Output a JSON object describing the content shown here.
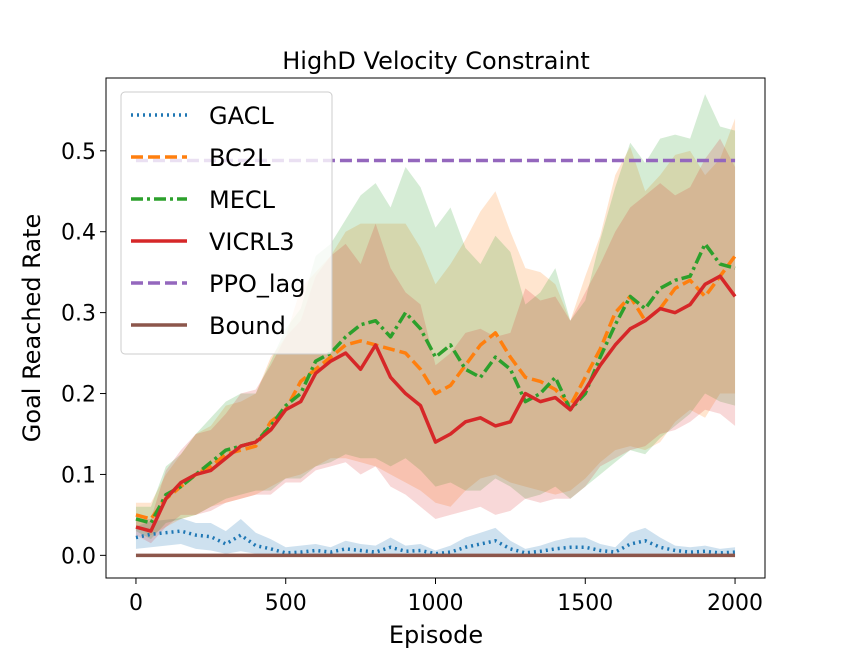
{
  "chart_data": {
    "type": "line",
    "title": "HighD Velocity Constraint",
    "xlabel": "Episode",
    "ylabel": "Goal Reached Rate",
    "xlim": [
      -100,
      2100
    ],
    "ylim": [
      -0.028,
      0.59
    ],
    "xticks": [
      0,
      500,
      1000,
      1500,
      2000
    ],
    "yticks": [
      0.0,
      0.1,
      0.2,
      0.3,
      0.4,
      0.5
    ],
    "xtick_labels": [
      "0",
      "500",
      "1000",
      "1500",
      "2000"
    ],
    "ytick_labels": [
      "0.0",
      "0.1",
      "0.2",
      "0.3",
      "0.4",
      "0.5"
    ],
    "legend_position": "top-left",
    "series": [
      {
        "name": "GACL",
        "color": "#1f77b4",
        "dash": "dotted",
        "band_opacity": 0.22,
        "x": [
          0,
          50,
          100,
          150,
          200,
          250,
          300,
          350,
          400,
          450,
          500,
          550,
          600,
          650,
          700,
          750,
          800,
          850,
          900,
          950,
          1000,
          1050,
          1100,
          1150,
          1200,
          1250,
          1300,
          1350,
          1400,
          1450,
          1500,
          1550,
          1600,
          1650,
          1700,
          1750,
          1800,
          1850,
          1900,
          1950,
          2000
        ],
        "values": [
          0.022,
          0.026,
          0.028,
          0.03,
          0.025,
          0.023,
          0.014,
          0.025,
          0.012,
          0.008,
          0.003,
          0.004,
          0.006,
          0.004,
          0.008,
          0.006,
          0.004,
          0.01,
          0.005,
          0.006,
          0.002,
          0.004,
          0.01,
          0.014,
          0.018,
          0.008,
          0.003,
          0.005,
          0.008,
          0.01,
          0.01,
          0.006,
          0.004,
          0.014,
          0.018,
          0.01,
          0.006,
          0.004,
          0.005,
          0.003,
          0.004
        ],
        "lower": [
          0.008,
          0.01,
          0.012,
          0.014,
          0.008,
          0.006,
          0.002,
          0.005,
          0.002,
          0.0,
          0.0,
          0.0,
          0.0,
          0.0,
          0.0,
          0.0,
          0.0,
          0.0,
          0.0,
          0.0,
          0.0,
          0.0,
          0.0,
          0.0,
          0.002,
          0.0,
          0.0,
          0.0,
          0.0,
          0.0,
          0.0,
          0.0,
          0.0,
          0.0,
          0.002,
          0.0,
          0.0,
          0.0,
          0.0,
          0.0,
          0.0
        ],
        "upper": [
          0.036,
          0.042,
          0.044,
          0.046,
          0.04,
          0.04,
          0.03,
          0.045,
          0.028,
          0.02,
          0.01,
          0.012,
          0.014,
          0.01,
          0.018,
          0.014,
          0.012,
          0.022,
          0.012,
          0.014,
          0.006,
          0.012,
          0.022,
          0.028,
          0.034,
          0.018,
          0.008,
          0.012,
          0.018,
          0.022,
          0.022,
          0.014,
          0.01,
          0.028,
          0.034,
          0.022,
          0.012,
          0.01,
          0.012,
          0.008,
          0.01
        ]
      },
      {
        "name": "BC2L",
        "color": "#ff7f0e",
        "dash": "dashed",
        "band_opacity": 0.2,
        "x": [
          0,
          50,
          100,
          150,
          200,
          250,
          300,
          350,
          400,
          450,
          500,
          550,
          600,
          650,
          700,
          750,
          800,
          850,
          900,
          950,
          1000,
          1050,
          1100,
          1150,
          1200,
          1250,
          1300,
          1350,
          1400,
          1450,
          1500,
          1550,
          1600,
          1650,
          1700,
          1750,
          1800,
          1850,
          1900,
          1950,
          2000
        ],
        "values": [
          0.05,
          0.045,
          0.07,
          0.085,
          0.1,
          0.11,
          0.125,
          0.13,
          0.135,
          0.165,
          0.18,
          0.215,
          0.23,
          0.245,
          0.26,
          0.265,
          0.26,
          0.255,
          0.25,
          0.23,
          0.2,
          0.21,
          0.235,
          0.26,
          0.275,
          0.245,
          0.22,
          0.215,
          0.205,
          0.185,
          0.22,
          0.255,
          0.3,
          0.32,
          0.29,
          0.305,
          0.33,
          0.34,
          0.32,
          0.345,
          0.37
        ],
        "lower": [
          0.035,
          0.025,
          0.035,
          0.045,
          0.05,
          0.06,
          0.065,
          0.07,
          0.075,
          0.085,
          0.095,
          0.1,
          0.11,
          0.12,
          0.12,
          0.115,
          0.11,
          0.1,
          0.09,
          0.08,
          0.065,
          0.06,
          0.08,
          0.095,
          0.1,
          0.09,
          0.085,
          0.08,
          0.075,
          0.08,
          0.095,
          0.115,
          0.13,
          0.135,
          0.13,
          0.14,
          0.165,
          0.18,
          0.17,
          0.2,
          0.2
        ],
        "upper": [
          0.065,
          0.065,
          0.1,
          0.125,
          0.15,
          0.16,
          0.185,
          0.19,
          0.2,
          0.245,
          0.27,
          0.33,
          0.35,
          0.37,
          0.4,
          0.41,
          0.41,
          0.41,
          0.41,
          0.38,
          0.335,
          0.36,
          0.39,
          0.425,
          0.45,
          0.4,
          0.355,
          0.35,
          0.335,
          0.29,
          0.345,
          0.395,
          0.47,
          0.505,
          0.45,
          0.47,
          0.495,
          0.5,
          0.47,
          0.49,
          0.54
        ]
      },
      {
        "name": "MECL",
        "color": "#2ca02c",
        "dash": "dashdot",
        "band_opacity": 0.2,
        "x": [
          0,
          50,
          100,
          150,
          200,
          250,
          300,
          350,
          400,
          450,
          500,
          550,
          600,
          650,
          700,
          750,
          800,
          850,
          900,
          950,
          1000,
          1050,
          1100,
          1150,
          1200,
          1250,
          1300,
          1350,
          1400,
          1450,
          1500,
          1550,
          1600,
          1650,
          1700,
          1750,
          1800,
          1850,
          1900,
          1950,
          2000
        ],
        "values": [
          0.045,
          0.04,
          0.075,
          0.085,
          0.1,
          0.115,
          0.13,
          0.135,
          0.14,
          0.16,
          0.185,
          0.2,
          0.24,
          0.25,
          0.27,
          0.285,
          0.29,
          0.27,
          0.3,
          0.28,
          0.245,
          0.26,
          0.23,
          0.22,
          0.245,
          0.23,
          0.19,
          0.2,
          0.22,
          0.18,
          0.2,
          0.245,
          0.285,
          0.32,
          0.305,
          0.33,
          0.34,
          0.345,
          0.385,
          0.36,
          0.355
        ],
        "lower": [
          0.03,
          0.02,
          0.04,
          0.045,
          0.05,
          0.06,
          0.07,
          0.075,
          0.08,
          0.08,
          0.095,
          0.095,
          0.11,
          0.115,
          0.125,
          0.12,
          0.12,
          0.11,
          0.12,
          0.105,
          0.085,
          0.09,
          0.08,
          0.08,
          0.095,
          0.085,
          0.07,
          0.075,
          0.085,
          0.07,
          0.085,
          0.1,
          0.115,
          0.13,
          0.125,
          0.145,
          0.16,
          0.175,
          0.2,
          0.19,
          0.185
        ],
        "upper": [
          0.06,
          0.06,
          0.11,
          0.125,
          0.15,
          0.17,
          0.19,
          0.2,
          0.2,
          0.24,
          0.28,
          0.305,
          0.37,
          0.385,
          0.415,
          0.445,
          0.46,
          0.43,
          0.48,
          0.455,
          0.405,
          0.43,
          0.38,
          0.36,
          0.395,
          0.375,
          0.31,
          0.325,
          0.355,
          0.29,
          0.315,
          0.39,
          0.455,
          0.51,
          0.485,
          0.515,
          0.52,
          0.515,
          0.57,
          0.53,
          0.525
        ]
      },
      {
        "name": "VICRL3",
        "color": "#d62728",
        "dash": "solid",
        "band_opacity": 0.18,
        "x": [
          0,
          50,
          100,
          150,
          200,
          250,
          300,
          350,
          400,
          450,
          500,
          550,
          600,
          650,
          700,
          750,
          800,
          850,
          900,
          950,
          1000,
          1050,
          1100,
          1150,
          1200,
          1250,
          1300,
          1350,
          1400,
          1450,
          1500,
          1550,
          1600,
          1650,
          1700,
          1750,
          1800,
          1850,
          1900,
          1950,
          2000
        ],
        "values": [
          0.035,
          0.03,
          0.07,
          0.09,
          0.1,
          0.105,
          0.12,
          0.135,
          0.14,
          0.155,
          0.18,
          0.19,
          0.225,
          0.24,
          0.25,
          0.23,
          0.26,
          0.22,
          0.2,
          0.185,
          0.14,
          0.15,
          0.165,
          0.17,
          0.16,
          0.165,
          0.2,
          0.19,
          0.195,
          0.18,
          0.205,
          0.235,
          0.26,
          0.28,
          0.29,
          0.305,
          0.3,
          0.31,
          0.335,
          0.345,
          0.32
        ],
        "lower": [
          0.025,
          0.015,
          0.035,
          0.05,
          0.05,
          0.055,
          0.065,
          0.07,
          0.075,
          0.075,
          0.09,
          0.09,
          0.105,
          0.11,
          0.115,
          0.1,
          0.11,
          0.085,
          0.075,
          0.06,
          0.045,
          0.05,
          0.055,
          0.06,
          0.05,
          0.055,
          0.07,
          0.065,
          0.07,
          0.07,
          0.085,
          0.11,
          0.12,
          0.13,
          0.135,
          0.15,
          0.155,
          0.165,
          0.18,
          0.175,
          0.16
        ],
        "upper": [
          0.045,
          0.045,
          0.105,
          0.13,
          0.15,
          0.155,
          0.175,
          0.2,
          0.205,
          0.235,
          0.27,
          0.29,
          0.345,
          0.37,
          0.385,
          0.36,
          0.41,
          0.355,
          0.325,
          0.31,
          0.235,
          0.25,
          0.275,
          0.28,
          0.27,
          0.275,
          0.33,
          0.315,
          0.32,
          0.29,
          0.325,
          0.36,
          0.4,
          0.43,
          0.445,
          0.46,
          0.445,
          0.455,
          0.49,
          0.515,
          0.48
        ]
      },
      {
        "name": "PPO_lag",
        "color": "#9467bd",
        "dash": "dashed",
        "band_opacity": 0,
        "x": [
          0,
          2000
        ],
        "values": [
          0.488,
          0.488
        ]
      },
      {
        "name": "Bound",
        "color": "#8c564b",
        "dash": "solid",
        "band_opacity": 0,
        "x": [
          0,
          2000
        ],
        "values": [
          0.0,
          0.0
        ]
      }
    ]
  }
}
